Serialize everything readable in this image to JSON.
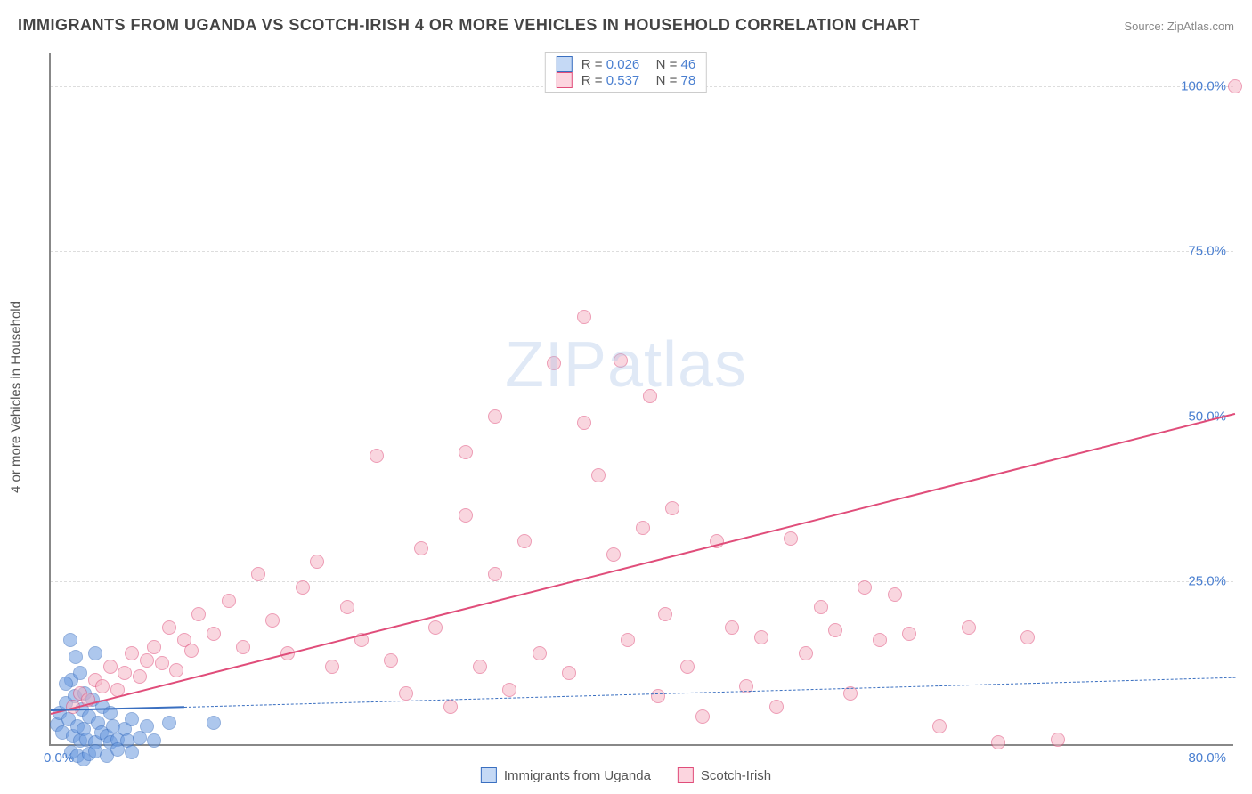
{
  "title": "IMMIGRANTS FROM UGANDA VS SCOTCH-IRISH 4 OR MORE VEHICLES IN HOUSEHOLD CORRELATION CHART",
  "source": "Source: ZipAtlas.com",
  "y_axis_label": "4 or more Vehicles in Household",
  "watermark": "ZIPatlas",
  "chart": {
    "type": "scatter",
    "background_color": "#ffffff",
    "grid_color": "#dddddd",
    "axis_color": "#888888",
    "text_color": "#555555",
    "value_color": "#4a7fd0",
    "xlim": [
      0,
      80
    ],
    "ylim": [
      0,
      105
    ],
    "yticks": [
      {
        "value": 25,
        "label": "25.0%"
      },
      {
        "value": 50,
        "label": "50.0%"
      },
      {
        "value": 75,
        "label": "75.0%"
      },
      {
        "value": 100,
        "label": "100.0%"
      }
    ],
    "xticks": [
      {
        "value": 0,
        "label": "0.0%"
      },
      {
        "value": 80,
        "label": "80.0%"
      }
    ],
    "point_radius": 8,
    "point_opacity": 0.55,
    "series": [
      {
        "name": "Immigrants from Uganda",
        "color": "#6b9be0",
        "border": "#3a6fc0",
        "stats": {
          "R": "0.026",
          "N": "46"
        },
        "trend": {
          "x1": 0,
          "y1": 5.5,
          "x2": 9,
          "y2": 6.0,
          "solid": true,
          "ext_x2": 80,
          "ext_y2": 10.5
        },
        "points": [
          [
            0.4,
            3.2
          ],
          [
            0.6,
            5.0
          ],
          [
            0.8,
            2.0
          ],
          [
            1.0,
            6.5
          ],
          [
            1.2,
            4.0
          ],
          [
            1.3,
            16.0
          ],
          [
            1.4,
            10.0
          ],
          [
            1.5,
            1.5
          ],
          [
            1.6,
            7.5
          ],
          [
            1.7,
            13.5
          ],
          [
            1.8,
            3.0
          ],
          [
            2.0,
            0.8
          ],
          [
            2.1,
            5.5
          ],
          [
            2.2,
            2.5
          ],
          [
            2.3,
            8.0
          ],
          [
            2.4,
            1.0
          ],
          [
            2.6,
            4.5
          ],
          [
            2.8,
            7.0
          ],
          [
            3.0,
            0.5
          ],
          [
            3.0,
            14.0
          ],
          [
            3.2,
            3.5
          ],
          [
            3.4,
            2.0
          ],
          [
            3.5,
            6.0
          ],
          [
            3.8,
            1.5
          ],
          [
            4.0,
            5.0
          ],
          [
            4.0,
            0.5
          ],
          [
            4.2,
            3.0
          ],
          [
            4.5,
            1.0
          ],
          [
            5.0,
            2.5
          ],
          [
            5.2,
            0.8
          ],
          [
            5.5,
            4.0
          ],
          [
            6.0,
            1.2
          ],
          [
            6.5,
            3.0
          ],
          [
            7.0,
            0.8
          ],
          [
            1.4,
            -1.0
          ],
          [
            1.8,
            -1.5
          ],
          [
            2.2,
            -2.0
          ],
          [
            2.6,
            -1.2
          ],
          [
            3.0,
            -0.8
          ],
          [
            3.8,
            -1.5
          ],
          [
            4.5,
            -0.5
          ],
          [
            5.5,
            -1.0
          ],
          [
            8.0,
            3.5
          ],
          [
            2.0,
            11.0
          ],
          [
            1.0,
            9.5
          ],
          [
            11.0,
            3.5
          ]
        ]
      },
      {
        "name": "Scotch-Irish",
        "color": "#f5b5c5",
        "border": "#e04d7a",
        "stats": {
          "R": "0.537",
          "N": "78"
        },
        "trend": {
          "x1": 0,
          "y1": 5.0,
          "x2": 80,
          "y2": 50.5,
          "solid": true
        },
        "points": [
          [
            1.5,
            6.0
          ],
          [
            2.0,
            8.0
          ],
          [
            2.5,
            7.0
          ],
          [
            3.0,
            10.0
          ],
          [
            3.5,
            9.0
          ],
          [
            4.0,
            12.0
          ],
          [
            4.5,
            8.5
          ],
          [
            5.0,
            11.0
          ],
          [
            5.5,
            14.0
          ],
          [
            6.0,
            10.5
          ],
          [
            6.5,
            13.0
          ],
          [
            7.0,
            15.0
          ],
          [
            7.5,
            12.5
          ],
          [
            8.0,
            18.0
          ],
          [
            8.5,
            11.5
          ],
          [
            9.0,
            16.0
          ],
          [
            9.5,
            14.5
          ],
          [
            10.0,
            20.0
          ],
          [
            11.0,
            17.0
          ],
          [
            12.0,
            22.0
          ],
          [
            13.0,
            15.0
          ],
          [
            14.0,
            26.0
          ],
          [
            15.0,
            19.0
          ],
          [
            16.0,
            14.0
          ],
          [
            17.0,
            24.0
          ],
          [
            18.0,
            28.0
          ],
          [
            19.0,
            12.0
          ],
          [
            20.0,
            21.0
          ],
          [
            21.0,
            16.0
          ],
          [
            22.0,
            44.0
          ],
          [
            23.0,
            13.0
          ],
          [
            24.0,
            8.0
          ],
          [
            25.0,
            30.0
          ],
          [
            26.0,
            18.0
          ],
          [
            27.0,
            6.0
          ],
          [
            28.0,
            44.5
          ],
          [
            29.0,
            12.0
          ],
          [
            30.0,
            26.0
          ],
          [
            31.0,
            8.5
          ],
          [
            32.0,
            31.0
          ],
          [
            33.0,
            14.0
          ],
          [
            34.0,
            58.0
          ],
          [
            35.0,
            11.0
          ],
          [
            36.0,
            65.0
          ],
          [
            37.0,
            41.0
          ],
          [
            38.0,
            29.0
          ],
          [
            38.5,
            58.5
          ],
          [
            39.0,
            16.0
          ],
          [
            40.0,
            33.0
          ],
          [
            40.5,
            53.0
          ],
          [
            41.0,
            7.5
          ],
          [
            41.5,
            20.0
          ],
          [
            42.0,
            36.0
          ],
          [
            43.0,
            12.0
          ],
          [
            44.0,
            4.5
          ],
          [
            45.0,
            31.0
          ],
          [
            46.0,
            18.0
          ],
          [
            47.0,
            9.0
          ],
          [
            48.0,
            16.5
          ],
          [
            49.0,
            6.0
          ],
          [
            50.0,
            31.5
          ],
          [
            51.0,
            14.0
          ],
          [
            52.0,
            21.0
          ],
          [
            53.0,
            17.5
          ],
          [
            54.0,
            8.0
          ],
          [
            55.0,
            24.0
          ],
          [
            56.0,
            16.0
          ],
          [
            57.0,
            23.0
          ],
          [
            58.0,
            17.0
          ],
          [
            60.0,
            3.0
          ],
          [
            62.0,
            18.0
          ],
          [
            64.0,
            0.5
          ],
          [
            66.0,
            16.5
          ],
          [
            68.0,
            1.0
          ],
          [
            30.0,
            50.0
          ],
          [
            36.0,
            49.0
          ],
          [
            28.0,
            35.0
          ],
          [
            80.0,
            100.0
          ]
        ]
      }
    ]
  },
  "legend_top": {
    "rows": [
      {
        "swatch_fill": "#c5d9f5",
        "swatch_border": "#3a6fc0",
        "r": "0.026",
        "n": "46"
      },
      {
        "swatch_fill": "#fcd5df",
        "swatch_border": "#e04d7a",
        "r": "0.537",
        "n": "78"
      }
    ]
  },
  "legend_bottom": {
    "items": [
      {
        "swatch_fill": "#c5d9f5",
        "swatch_border": "#3a6fc0",
        "label": "Immigrants from Uganda"
      },
      {
        "swatch_fill": "#fcd5df",
        "swatch_border": "#e04d7a",
        "label": "Scotch-Irish"
      }
    ]
  }
}
